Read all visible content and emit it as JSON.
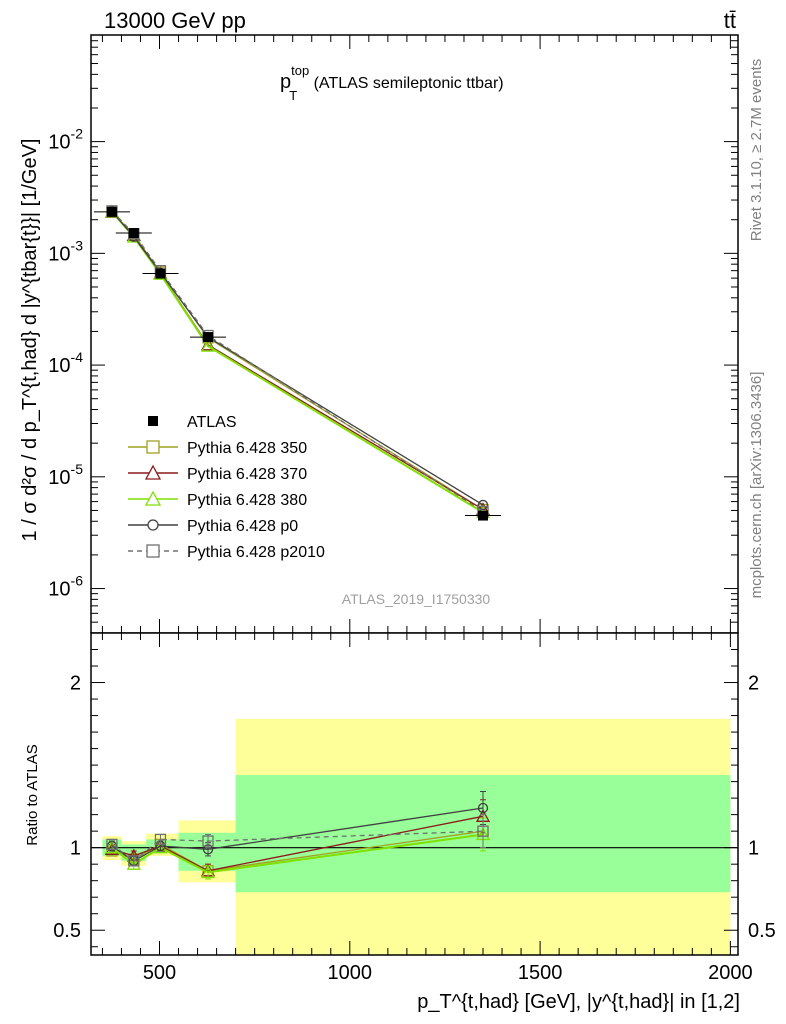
{
  "header": {
    "left": "13000 GeV pp",
    "right": "tt̄"
  },
  "side_labels": {
    "rivet": "Rivet 3.1.10, ≥ 2.7M events",
    "mcplots": "mcplots.cern.ch [arXiv:1306.3436]"
  },
  "plot_title": {
    "main": "p",
    "sup": "top",
    "sub": "T",
    "suffix": " (ATLAS semileptonic ttbar)"
  },
  "analysis_id": "ATLAS_2019_I1750330",
  "ylabel_main": "1 / σ d²σ / d p_T^{t,had} d |y^{tbar{t}}| [1/GeV]",
  "ylabel_ratio": "Ratio to ATLAS",
  "xlabel": "p_T^{t,had} [GeV], |y^{t,had}| in [1,2]",
  "colors": {
    "atlas": "#000000",
    "p350": "#a0a020",
    "p370": "#8b1a1a",
    "p380": "#80e000",
    "p0": "#404040",
    "p2010": "#707070",
    "band_inner": "#99ff99",
    "band_outer": "#ffff99"
  },
  "chart_data": [
    {
      "type": "line",
      "yscale": "log",
      "xlim": [
        320,
        2020
      ],
      "ylim": [
        4e-07,
        0.09
      ],
      "yticks": [
        {
          "value": 1e-06,
          "exp": "-6"
        },
        {
          "value": 1e-05,
          "exp": "-5"
        },
        {
          "value": 0.0001,
          "exp": "-4"
        },
        {
          "value": 0.001,
          "exp": "-3"
        },
        {
          "value": 0.01,
          "exp": "-2"
        }
      ],
      "legend_position": "middle-left",
      "series": [
        {
          "name": "ATLAS",
          "key": "atlas",
          "marker": "filled-square",
          "x": [
            375,
            432.5,
            502.5,
            627.5,
            1350
          ],
          "y": [
            0.00235,
            0.00152,
            0.00066,
            0.000178,
            4.5e-06
          ]
        },
        {
          "name": "Pythia 6.428 350",
          "key": "p350",
          "marker": "open-square",
          "x": [
            375,
            432.5,
            502.5,
            627.5,
            1350
          ],
          "y": [
            0.00234,
            0.00145,
            0.00068,
            0.000175,
            5.1e-06
          ]
        },
        {
          "name": "Pythia 6.428 370",
          "key": "p370",
          "marker": "open-triangle",
          "x": [
            375,
            432.5,
            502.5,
            627.5,
            1350
          ],
          "y": [
            0.00234,
            0.00145,
            0.00066,
            0.000152,
            5.1e-06
          ]
        },
        {
          "name": "Pythia 6.428 380",
          "key": "p380",
          "marker": "open-triangle",
          "x": [
            375,
            432.5,
            502.5,
            627.5,
            1350
          ],
          "y": [
            0.00236,
            0.0014,
            0.00065,
            0.000148,
            4.8e-06
          ]
        },
        {
          "name": "Pythia 6.428 p0",
          "key": "p0",
          "marker": "open-circle",
          "x": [
            375,
            432.5,
            502.5,
            627.5,
            1350
          ],
          "y": [
            0.00238,
            0.00141,
            0.00067,
            0.000178,
            5.6e-06
          ]
        },
        {
          "name": "Pythia 6.428 p2010",
          "key": "p2010",
          "marker": "open-square-dashed",
          "x": [
            375,
            432.5,
            502.5,
            627.5,
            1350
          ],
          "y": [
            0.0024,
            0.0015,
            0.0007,
            0.000184,
            4.9e-06
          ]
        }
      ]
    },
    {
      "type": "line",
      "xlim": [
        320,
        2020
      ],
      "ylim": [
        0.35,
        2.3
      ],
      "xticks": [
        500,
        1000,
        1500,
        2000
      ],
      "yticks": [
        0.5,
        1,
        2
      ],
      "bands": [
        {
          "x": [
            350,
            400
          ],
          "outer": [
            0.925,
            1.07
          ],
          "inner": [
            0.95,
            1.05
          ]
        },
        {
          "x": [
            400,
            465
          ],
          "outer": [
            0.89,
            1.04
          ],
          "inner": [
            0.92,
            1.02
          ]
        },
        {
          "x": [
            465,
            550
          ],
          "outer": [
            0.95,
            1.085
          ],
          "inner": [
            0.97,
            1.05
          ]
        },
        {
          "x": [
            550,
            700
          ],
          "outer": [
            0.79,
            1.165
          ],
          "inner": [
            0.86,
            1.09
          ]
        },
        {
          "x": [
            700,
            2000
          ],
          "outer": [
            0.35,
            1.78
          ],
          "inner": [
            0.73,
            1.44
          ]
        }
      ],
      "series": [
        {
          "key": "p350",
          "marker": "open-square",
          "x": [
            375,
            432.5,
            502.5,
            627.5,
            1350
          ],
          "y": [
            0.98,
            0.93,
            1.02,
            0.86,
            1.1
          ],
          "err": [
            0.03,
            0.03,
            0.03,
            0.04,
            0.1
          ]
        },
        {
          "key": "p370",
          "marker": "open-triangle",
          "x": [
            375,
            432.5,
            502.5,
            627.5,
            1350
          ],
          "y": [
            0.99,
            0.95,
            1.01,
            0.86,
            1.19
          ],
          "err": [
            0.03,
            0.03,
            0.03,
            0.04,
            0.1
          ]
        },
        {
          "key": "p380",
          "marker": "open-triangle",
          "x": [
            375,
            432.5,
            502.5,
            627.5,
            1350
          ],
          "y": [
            1.0,
            0.9,
            1.0,
            0.85,
            1.08
          ],
          "err": [
            0.03,
            0.03,
            0.03,
            0.04,
            0.1
          ]
        },
        {
          "key": "p0",
          "marker": "open-circle",
          "x": [
            375,
            432.5,
            502.5,
            627.5,
            1350
          ],
          "y": [
            1.01,
            0.92,
            1.01,
            0.99,
            1.24
          ],
          "err": [
            0.03,
            0.03,
            0.03,
            0.04,
            0.1
          ]
        },
        {
          "key": "p2010",
          "marker": "open-square-dashed",
          "x": [
            375,
            432.5,
            502.5,
            627.5,
            1350
          ],
          "y": [
            1.02,
            0.92,
            1.05,
            1.04,
            1.1
          ],
          "err": [
            0.03,
            0.03,
            0.03,
            0.04,
            0.1
          ]
        }
      ]
    }
  ]
}
